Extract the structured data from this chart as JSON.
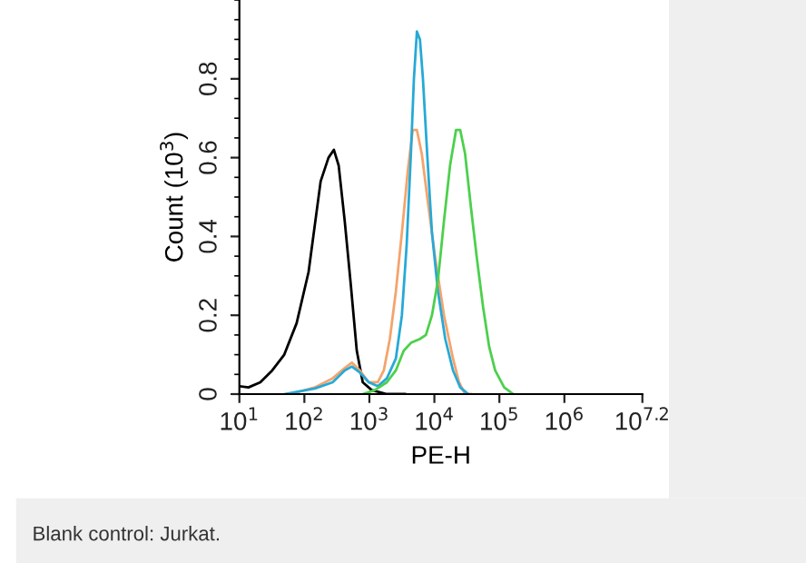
{
  "chart_data": {
    "type": "line",
    "xlabel": "PE-H",
    "ylabel": "Count (10$^{3}$)",
    "log": "x",
    "xlim": [
      10,
      15848932
    ],
    "ylim": [
      0,
      1.0
    ],
    "xticks": [
      {
        "value": 10,
        "label": "10$^{1}$"
      },
      {
        "value": 100,
        "label": "10$^{2}$"
      },
      {
        "value": 1000,
        "label": "10$^{3}$"
      },
      {
        "value": 10000,
        "label": "10$^{4}$"
      },
      {
        "value": 100000,
        "label": "10$^{5}$"
      },
      {
        "value": 1000000,
        "label": "10$^{6}$"
      },
      {
        "value": 15848932,
        "label": "10$^{7.2}$"
      }
    ],
    "yticks": [
      0,
      0.2,
      0.4,
      0.6,
      0.8
    ],
    "grid": false,
    "legend": false,
    "annotations": [
      "Blank control: Jurkat."
    ],
    "series": [
      {
        "color": "#000000",
        "x": [
          10,
          13.8,
          21,
          32,
          49,
          76,
          116,
          178,
          235,
          284,
          337,
          417,
          516,
          640,
          791,
          1089,
          1862,
          3516
        ],
        "values": [
          0.02,
          0.017,
          0.03,
          0.06,
          0.1,
          0.18,
          0.31,
          0.54,
          0.6,
          0.62,
          0.58,
          0.44,
          0.28,
          0.11,
          0.03,
          0.01,
          0,
          0
        ]
      },
      {
        "color": "#f4a46c",
        "x": [
          61,
          144,
          272,
          417,
          538,
          711,
          979,
          1349,
          1667,
          2065,
          2553,
          3162,
          3917,
          4645,
          5383,
          6397,
          7907,
          10210,
          14060,
          19360,
          23990,
          29650,
          36730
        ],
        "values": [
          0,
          0.017,
          0.04,
          0.066,
          0.08,
          0.06,
          0.03,
          0.03,
          0.06,
          0.14,
          0.26,
          0.41,
          0.57,
          0.67,
          0.67,
          0.61,
          0.49,
          0.35,
          0.2,
          0.09,
          0.03,
          0,
          0
        ]
      },
      {
        "color": "#27a9d6",
        "x": [
          49,
          144,
          272,
          417,
          538,
          711,
          979,
          1349,
          1858,
          2553,
          3162,
          3750,
          4355,
          4842,
          5383,
          5998,
          6668,
          7745,
          9180,
          11370,
          14690,
          19360,
          25000,
          33040
        ],
        "values": [
          0,
          0.014,
          0.03,
          0.06,
          0.07,
          0.055,
          0.03,
          0.02,
          0.04,
          0.09,
          0.2,
          0.38,
          0.61,
          0.8,
          0.92,
          0.9,
          0.8,
          0.61,
          0.41,
          0.26,
          0.14,
          0.06,
          0.017,
          0
        ]
      },
      {
        "color": "#4cd04c",
        "x": [
          791,
          1211,
          1858,
          2553,
          3373,
          4355,
          5998,
          7413,
          9180,
          11370,
          14060,
          17410,
          21530,
          25000,
          29650,
          36730,
          45390,
          56230,
          69660,
          86100,
          118600,
          163300
        ],
        "values": [
          0,
          0.01,
          0.03,
          0.06,
          0.11,
          0.13,
          0.14,
          0.15,
          0.2,
          0.29,
          0.44,
          0.58,
          0.67,
          0.67,
          0.61,
          0.47,
          0.34,
          0.22,
          0.12,
          0.06,
          0.017,
          0
        ]
      }
    ]
  }
}
